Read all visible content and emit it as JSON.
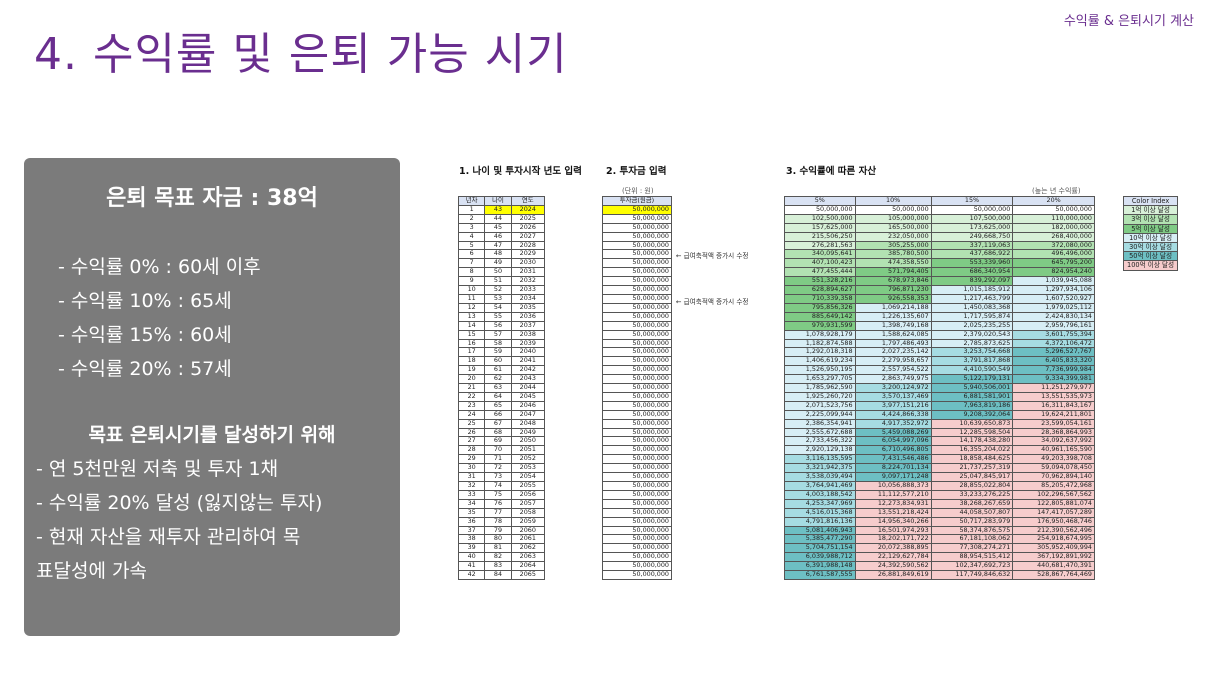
{
  "header": {
    "corner": "수익률 & 은퇴시기 계산",
    "title": "4. 수익률 및 은퇴 가능 시기"
  },
  "panel": {
    "title": "은퇴 목표 자금 : 38억",
    "rates": [
      "- 수익률 0% : 60세 이후",
      "- 수익률 10% : 65세",
      "- 수익률 15% : 60세",
      "- 수익률 20% : 57세"
    ],
    "goal_heading": "목표 은퇴시기를 달성하기 위해",
    "goals": [
      "- 연 5천만원 저축 및 투자 1채",
      "- 수익률 20% 달성 (잃지않는 투자)",
      "- 현재 자산을 재투자 관리하여 목",
      "표달성에 가속"
    ]
  },
  "sheet": {
    "label1": "1. 나이 및 투자시작 년도 입력",
    "label2": "2. 투자금 입력",
    "label3": "3. 수익률에 따른 자산",
    "unit2": "(단위 : 원)",
    "unit3": "(높는 년 수익률)",
    "t1_headers": [
      "년차",
      "나이",
      "연도"
    ],
    "t2_header": "투자금(원금)",
    "t3_headers": [
      "5%",
      "10%",
      "15%",
      "20%"
    ],
    "note": "← 급여축적액 증가시 수정",
    "invest": "50,000,000",
    "rows": [
      [
        "1",
        "43",
        "2024",
        "50,000,000",
        "50,000,000",
        "50,000,000",
        "50,000,000"
      ],
      [
        "2",
        "44",
        "2025",
        "102,500,000",
        "105,000,000",
        "107,500,000",
        "110,000,000"
      ],
      [
        "3",
        "45",
        "2026",
        "157,625,000",
        "165,500,000",
        "173,625,000",
        "182,000,000"
      ],
      [
        "4",
        "46",
        "2027",
        "215,506,250",
        "232,050,000",
        "249,668,750",
        "268,400,000"
      ],
      [
        "5",
        "47",
        "2028",
        "276,281,563",
        "305,255,000",
        "337,119,063",
        "372,080,000"
      ],
      [
        "6",
        "48",
        "2029",
        "340,095,641",
        "385,780,500",
        "437,686,922",
        "496,496,000"
      ],
      [
        "7",
        "49",
        "2030",
        "407,100,423",
        "474,358,550",
        "553,339,960",
        "645,795,200"
      ],
      [
        "8",
        "50",
        "2031",
        "477,455,444",
        "571,794,405",
        "686,340,954",
        "824,954,240"
      ],
      [
        "9",
        "51",
        "2032",
        "551,328,216",
        "678,973,846",
        "839,292,097",
        "1,039,945,088"
      ],
      [
        "10",
        "52",
        "2033",
        "628,894,627",
        "796,871,230",
        "1,015,185,912",
        "1,297,934,106"
      ],
      [
        "11",
        "53",
        "2034",
        "710,339,358",
        "926,558,353",
        "1,217,463,799",
        "1,607,520,927"
      ],
      [
        "12",
        "54",
        "2035",
        "795,856,326",
        "1,069,214,188",
        "1,450,083,368",
        "1,979,025,112"
      ],
      [
        "13",
        "55",
        "2036",
        "885,649,142",
        "1,226,135,607",
        "1,717,595,874",
        "2,424,830,134"
      ],
      [
        "14",
        "56",
        "2037",
        "979,931,599",
        "1,398,749,168",
        "2,025,235,255",
        "2,959,796,161"
      ],
      [
        "15",
        "57",
        "2038",
        "1,078,928,179",
        "1,588,624,085",
        "2,379,020,543",
        "3,601,755,394"
      ],
      [
        "16",
        "58",
        "2039",
        "1,182,874,588",
        "1,797,486,493",
        "2,785,873,625",
        "4,372,106,472"
      ],
      [
        "17",
        "59",
        "2040",
        "1,292,018,318",
        "2,027,235,142",
        "3,253,754,668",
        "5,296,527,767"
      ],
      [
        "18",
        "60",
        "2041",
        "1,406,619,234",
        "2,279,958,657",
        "3,791,817,868",
        "6,405,833,320"
      ],
      [
        "19",
        "61",
        "2042",
        "1,526,950,195",
        "2,557,954,522",
        "4,410,590,549",
        "7,736,999,984"
      ],
      [
        "20",
        "62",
        "2043",
        "1,653,297,705",
        "2,863,749,975",
        "5,122,179,131",
        "9,334,399,981"
      ],
      [
        "21",
        "63",
        "2044",
        "1,785,962,590",
        "3,200,124,972",
        "5,940,506,001",
        "11,251,279,977"
      ],
      [
        "22",
        "64",
        "2045",
        "1,925,260,720",
        "3,570,137,469",
        "6,881,581,901",
        "13,551,535,973"
      ],
      [
        "23",
        "65",
        "2046",
        "2,071,523,756",
        "3,977,151,216",
        "7,963,819,186",
        "16,311,843,167"
      ],
      [
        "24",
        "66",
        "2047",
        "2,225,099,944",
        "4,424,866,338",
        "9,208,392,064",
        "19,624,211,801"
      ],
      [
        "25",
        "67",
        "2048",
        "2,386,354,941",
        "4,917,352,972",
        "10,639,650,873",
        "23,599,054,161"
      ],
      [
        "26",
        "68",
        "2049",
        "2,555,672,688",
        "5,459,088,269",
        "12,285,598,504",
        "28,368,864,993"
      ],
      [
        "27",
        "69",
        "2050",
        "2,733,456,322",
        "6,054,997,096",
        "14,178,438,280",
        "34,092,637,992"
      ],
      [
        "28",
        "70",
        "2051",
        "2,920,129,138",
        "6,710,496,805",
        "16,355,204,022",
        "40,961,165,590"
      ],
      [
        "29",
        "71",
        "2052",
        "3,116,135,595",
        "7,431,546,486",
        "18,858,484,625",
        "49,203,398,708"
      ],
      [
        "30",
        "72",
        "2053",
        "3,321,942,375",
        "8,224,701,134",
        "21,737,257,319",
        "59,094,078,450"
      ],
      [
        "31",
        "73",
        "2054",
        "3,538,039,494",
        "9,097,171,248",
        "25,047,845,917",
        "70,962,894,140"
      ],
      [
        "32",
        "74",
        "2055",
        "3,764,941,469",
        "10,056,888,373",
        "28,855,022,804",
        "85,205,472,968"
      ],
      [
        "33",
        "75",
        "2056",
        "4,003,188,542",
        "11,112,577,210",
        "33,233,276,225",
        "102,296,567,562"
      ],
      [
        "34",
        "76",
        "2057",
        "4,253,347,969",
        "12,273,834,931",
        "38,268,267,659",
        "122,805,881,074"
      ],
      [
        "35",
        "77",
        "2058",
        "4,516,015,368",
        "13,551,218,424",
        "44,058,507,807",
        "147,417,057,289"
      ],
      [
        "36",
        "78",
        "2059",
        "4,791,816,136",
        "14,956,340,266",
        "50,717,283,979",
        "176,950,468,746"
      ],
      [
        "37",
        "79",
        "2060",
        "5,081,406,943",
        "16,501,974,293",
        "58,374,876,575",
        "212,390,562,496"
      ],
      [
        "38",
        "80",
        "2061",
        "5,385,477,290",
        "18,202,171,722",
        "67,181,108,062",
        "254,918,674,995"
      ],
      [
        "39",
        "81",
        "2062",
        "5,704,751,154",
        "20,072,388,895",
        "77,308,274,271",
        "305,952,409,994"
      ],
      [
        "40",
        "82",
        "2063",
        "6,039,988,712",
        "22,129,627,784",
        "88,954,515,412",
        "367,192,891,992"
      ],
      [
        "41",
        "83",
        "2064",
        "6,391,988,148",
        "24,392,590,562",
        "102,347,692,723",
        "440,681,470,391"
      ],
      [
        "42",
        "84",
        "2065",
        "6,761,587,555",
        "26,881,849,619",
        "117,749,846,632",
        "528,867,764,469"
      ]
    ]
  },
  "legend": {
    "title": "Color Index",
    "items": [
      {
        "label": "1억 이상 달성",
        "color": "#d8f0d8"
      },
      {
        "label": "3억 이상 달성",
        "color": "#b2e2b2"
      },
      {
        "label": "5억 이상 달성",
        "color": "#7fcb85"
      },
      {
        "label": "10억 이상 달성",
        "color": "#d7eef5"
      },
      {
        "label": "30억 이상 달성",
        "color": "#a6dce2"
      },
      {
        "label": "50억 이상 달성",
        "color": "#6dbfc3"
      },
      {
        "label": "100억 이상 달성",
        "color": "#f6cccc"
      }
    ]
  }
}
